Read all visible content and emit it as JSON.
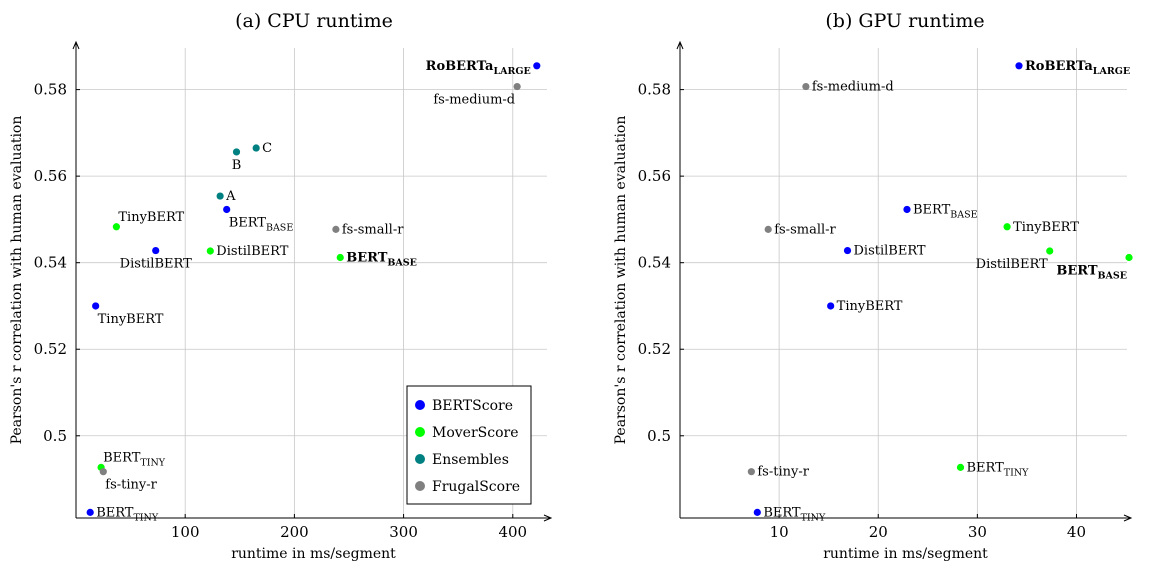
{
  "chart_data": [
    {
      "type": "scatter",
      "title": "(a) CPU runtime",
      "xlabel": "runtime in ms/segment",
      "ylabel": "Pearson's r correlation with human evaluation",
      "xlim": [
        0,
        435
      ],
      "ylim": [
        0.481,
        0.591
      ],
      "xticks": [
        100,
        200,
        300,
        400
      ],
      "yticks": [
        0.5,
        0.52,
        0.54,
        0.56,
        0.58
      ],
      "xtick_labels": [
        "100",
        "200",
        "300",
        "400"
      ],
      "ytick_labels": [
        "0.5",
        "0.52",
        "0.54",
        "0.56",
        "0.58"
      ],
      "grid": true,
      "legend": {
        "position": "bottom-right",
        "entries": [
          {
            "name": "BERTScore",
            "color": "#0000ff"
          },
          {
            "name": "MoverScore",
            "color": "#00ff00"
          },
          {
            "name": "Ensembles",
            "color": "#008080"
          },
          {
            "name": "FrugalScore",
            "color": "#808080"
          }
        ]
      },
      "points": [
        {
          "group": "BERTScore",
          "x": 422,
          "y": 0.5855,
          "label": "RoBERTa",
          "sub": "LARGE",
          "bold": true,
          "anchor": "left"
        },
        {
          "group": "FrugalScore",
          "x": 404,
          "y": 0.5807,
          "label": "fs-medium-d",
          "sub": "",
          "bold": false,
          "anchor": "below-left"
        },
        {
          "group": "Ensembles",
          "x": 165,
          "y": 0.5665,
          "label": "C",
          "sub": "",
          "bold": false,
          "anchor": "right"
        },
        {
          "group": "Ensembles",
          "x": 147,
          "y": 0.5656,
          "label": "B",
          "sub": "",
          "bold": false,
          "anchor": "below"
        },
        {
          "group": "Ensembles",
          "x": 132,
          "y": 0.5554,
          "label": "A",
          "sub": "",
          "bold": false,
          "anchor": "right"
        },
        {
          "group": "BERTScore",
          "x": 138,
          "y": 0.5523,
          "label": "BERT",
          "sub": "BASE",
          "bold": false,
          "anchor": "below-right"
        },
        {
          "group": "MoverScore",
          "x": 37,
          "y": 0.5483,
          "label": "TinyBERT",
          "sub": "",
          "bold": false,
          "anchor": "above-right"
        },
        {
          "group": "FrugalScore",
          "x": 238,
          "y": 0.5477,
          "label": "fs-small-r",
          "sub": "",
          "bold": false,
          "anchor": "right"
        },
        {
          "group": "BERTScore",
          "x": 73,
          "y": 0.5428,
          "label": "DistilBERT",
          "sub": "",
          "bold": false,
          "anchor": "below"
        },
        {
          "group": "MoverScore",
          "x": 123,
          "y": 0.5427,
          "label": "DistilBERT",
          "sub": "",
          "bold": false,
          "anchor": "right"
        },
        {
          "group": "MoverScore",
          "x": 242,
          "y": 0.5412,
          "label": "BERT",
          "sub": "BASE",
          "bold": true,
          "anchor": "right"
        },
        {
          "group": "BERTScore",
          "x": 18,
          "y": 0.53,
          "label": "TinyBERT",
          "sub": "",
          "bold": false,
          "anchor": "below-right"
        },
        {
          "group": "MoverScore",
          "x": 23,
          "y": 0.4927,
          "label": "BERT",
          "sub": "TINY",
          "bold": false,
          "anchor": "above-right"
        },
        {
          "group": "FrugalScore",
          "x": 25,
          "y": 0.4917,
          "label": "fs-tiny-r",
          "sub": "",
          "bold": false,
          "anchor": "below-right"
        },
        {
          "group": "BERTScore",
          "x": 13,
          "y": 0.4823,
          "label": "BERT",
          "sub": "TINY",
          "bold": false,
          "anchor": "right"
        }
      ]
    },
    {
      "type": "scatter",
      "title": "(b) GPU runtime",
      "xlabel": "runtime in ms/segment",
      "ylabel": "Pearson's r correlation with human evaluation",
      "xlim": [
        0,
        45.5
      ],
      "ylim": [
        0.481,
        0.591
      ],
      "xticks": [
        10,
        20,
        30,
        40
      ],
      "yticks": [
        0.5,
        0.52,
        0.54,
        0.56,
        0.58
      ],
      "xtick_labels": [
        "10",
        "20",
        "30",
        "40"
      ],
      "ytick_labels": [
        "0.5",
        "0.52",
        "0.54",
        "0.56",
        "0.58"
      ],
      "grid": true,
      "points": [
        {
          "group": "BERTScore",
          "x": 34.2,
          "y": 0.5855,
          "label": "RoBERTa",
          "sub": "LARGE",
          "bold": true,
          "anchor": "right"
        },
        {
          "group": "FrugalScore",
          "x": 12.7,
          "y": 0.5807,
          "label": "fs-medium-d",
          "sub": "",
          "bold": false,
          "anchor": "right"
        },
        {
          "group": "BERTScore",
          "x": 22.9,
          "y": 0.5523,
          "label": "BERT",
          "sub": "BASE",
          "bold": false,
          "anchor": "right"
        },
        {
          "group": "MoverScore",
          "x": 33.0,
          "y": 0.5483,
          "label": "TinyBERT",
          "sub": "",
          "bold": false,
          "anchor": "right"
        },
        {
          "group": "FrugalScore",
          "x": 8.9,
          "y": 0.5477,
          "label": "fs-small-r",
          "sub": "",
          "bold": false,
          "anchor": "right"
        },
        {
          "group": "BERTScore",
          "x": 16.9,
          "y": 0.5428,
          "label": "DistilBERT",
          "sub": "",
          "bold": false,
          "anchor": "right"
        },
        {
          "group": "MoverScore",
          "x": 37.3,
          "y": 0.5427,
          "label": "DistilBERT",
          "sub": "",
          "bold": false,
          "anchor": "below-left"
        },
        {
          "group": "MoverScore",
          "x": 45.3,
          "y": 0.5412,
          "label": "BERT",
          "sub": "BASE",
          "bold": true,
          "anchor": "below-left"
        },
        {
          "group": "BERTScore",
          "x": 15.2,
          "y": 0.53,
          "label": "TinyBERT",
          "sub": "",
          "bold": false,
          "anchor": "right"
        },
        {
          "group": "MoverScore",
          "x": 28.3,
          "y": 0.4927,
          "label": "BERT",
          "sub": "TINY",
          "bold": false,
          "anchor": "right"
        },
        {
          "group": "FrugalScore",
          "x": 7.2,
          "y": 0.4917,
          "label": "fs-tiny-r",
          "sub": "",
          "bold": false,
          "anchor": "right"
        },
        {
          "group": "BERTScore",
          "x": 7.8,
          "y": 0.4823,
          "label": "BERT",
          "sub": "TINY",
          "bold": false,
          "anchor": "right"
        }
      ]
    }
  ]
}
